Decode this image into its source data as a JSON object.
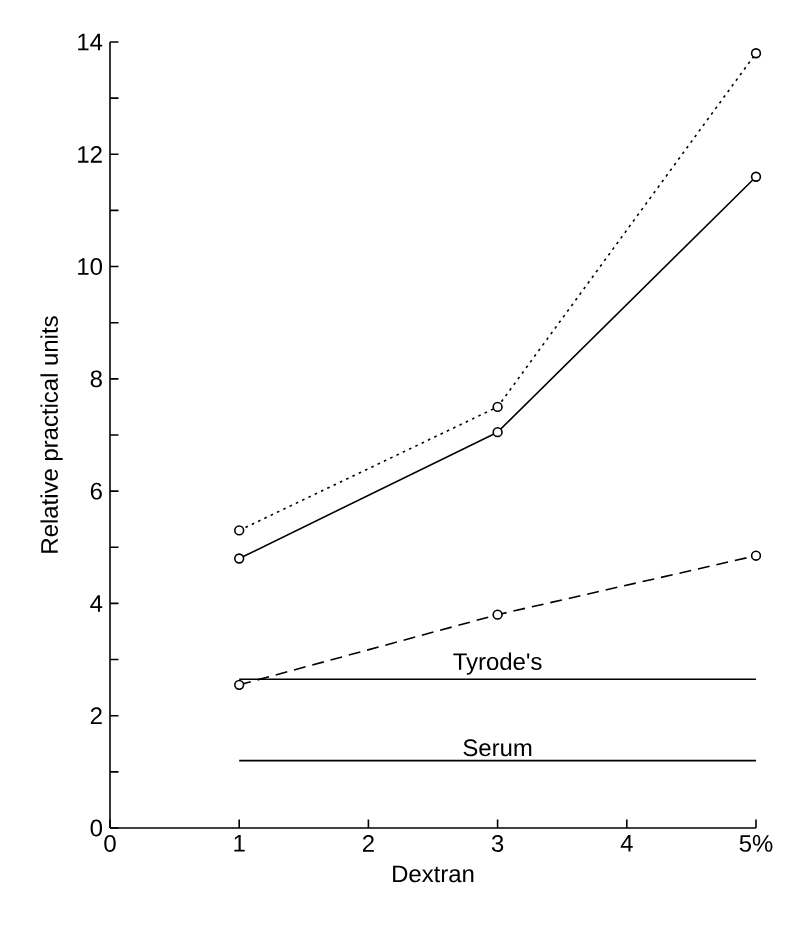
{
  "chart_data": {
    "type": "line",
    "xlabel": "Dextran",
    "ylabel": "Relative practical units",
    "x": [
      1,
      3,
      5
    ],
    "xlim": [
      0,
      5
    ],
    "ylim": [
      0,
      14
    ],
    "xticks": [
      0,
      1,
      2,
      3,
      4,
      {
        "value": 5,
        "label": "5%"
      }
    ],
    "yticks": [
      0,
      {
        "value": 1,
        "label": null
      },
      2,
      {
        "value": 3,
        "label": null
      },
      4,
      {
        "value": 5,
        "label": null
      },
      6,
      {
        "value": 7,
        "label": null
      },
      8,
      {
        "value": 9,
        "label": null
      },
      10,
      {
        "value": 11,
        "label": null
      },
      12,
      {
        "value": 13,
        "label": null
      },
      14
    ],
    "series": [
      {
        "color": "#000000",
        "values": [
          5.3,
          7.5,
          13.8
        ],
        "marker": "circle",
        "line_style": "dotted"
      },
      {
        "color": "#000000",
        "values": [
          4.8,
          7.05,
          11.6
        ],
        "marker": "circle",
        "line_style": "solid"
      },
      {
        "color": "#000000",
        "values": [
          2.55,
          3.8,
          4.85
        ],
        "marker": "circle",
        "line_style": "dashed"
      },
      {
        "name": "Tyrode's",
        "color": "#000000",
        "values": [
          2.65,
          2.65,
          2.65
        ],
        "marker": "none",
        "line_style": "solid"
      },
      {
        "name": "Serum",
        "color": "#000000",
        "values": [
          1.2,
          1.2,
          1.2
        ],
        "marker": "none",
        "line_style": "solid"
      }
    ]
  }
}
